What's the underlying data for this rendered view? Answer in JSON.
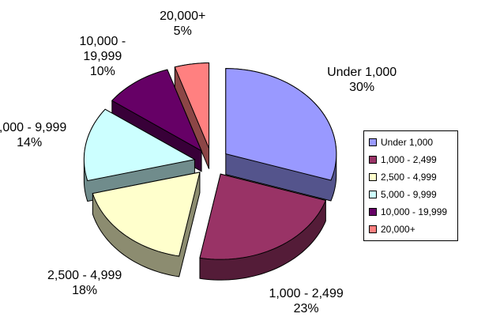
{
  "chart_data": {
    "type": "pie",
    "categories": [
      "Under 1,000",
      "1,000 - 2,499",
      "2,500 - 4,999",
      "5,000 - 9,999",
      "10,000 - 19,999",
      "20,000+"
    ],
    "values": [
      30,
      23,
      18,
      14,
      10,
      5
    ],
    "value_labels": [
      "30%",
      "23%",
      "18%",
      "14%",
      "10%",
      "5%"
    ],
    "colors": [
      "#9999ff",
      "#993366",
      "#ffffcc",
      "#ccffff",
      "#660066",
      "#ff8080"
    ],
    "legend": "right"
  }
}
